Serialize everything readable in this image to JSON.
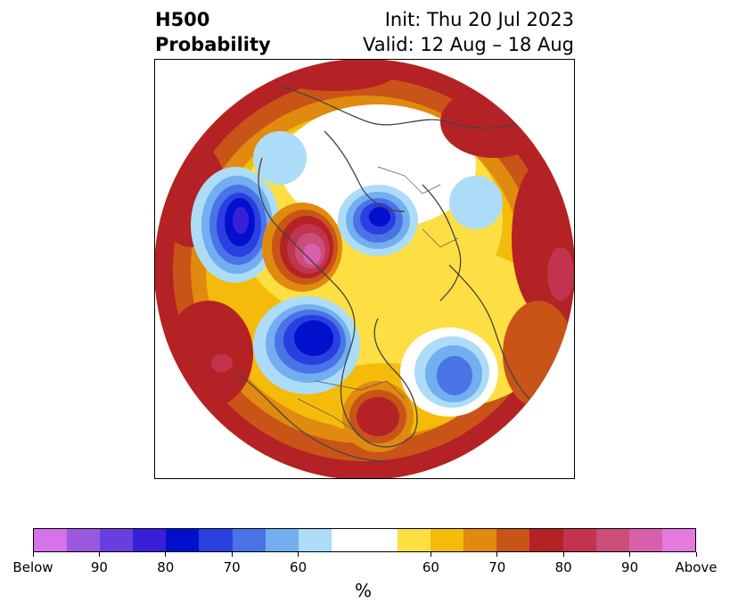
{
  "title": {
    "left_line1": "H500",
    "left_line2": "Probability",
    "right_line1": "Init: Thu 20 Jul 2023",
    "right_line2": "Valid: 12 Aug – 18 Aug"
  },
  "map": {
    "projection": "north-polar-stereographic",
    "field": "500 hPa height anomaly probability",
    "features": [
      {
        "name": "trough-north-pacific-west",
        "sign": "below",
        "level": 85
      },
      {
        "name": "ridge-siberia",
        "sign": "above",
        "level": 95
      },
      {
        "name": "trough-kara-sea",
        "sign": "below",
        "level": 85
      },
      {
        "name": "trough-western-canada",
        "sign": "below",
        "level": 85
      },
      {
        "name": "trough-north-atlantic",
        "sign": "below",
        "level": 75
      },
      {
        "name": "ridge-southeast-us",
        "sign": "above",
        "level": 80
      },
      {
        "name": "ridge-europe-africa",
        "sign": "above",
        "level": 85
      }
    ]
  },
  "colorbar": {
    "colors": [
      "#d673e8",
      "#9b59e0",
      "#6a3de0",
      "#3a1fd9",
      "#0010cc",
      "#2a3fe0",
      "#4a74e6",
      "#72aef0",
      "#acdcf7",
      "#ffffff",
      "#ffffff",
      "#fddf44",
      "#f4bb0a",
      "#e08a0f",
      "#c95418",
      "#b42225",
      "#c2344d",
      "#cb4d7a",
      "#d85fab",
      "#e679dd"
    ],
    "tick_labels": [
      "Below",
      "90",
      "80",
      "70",
      "60",
      "60",
      "70",
      "80",
      "90",
      "Above"
    ],
    "unit": "%"
  }
}
